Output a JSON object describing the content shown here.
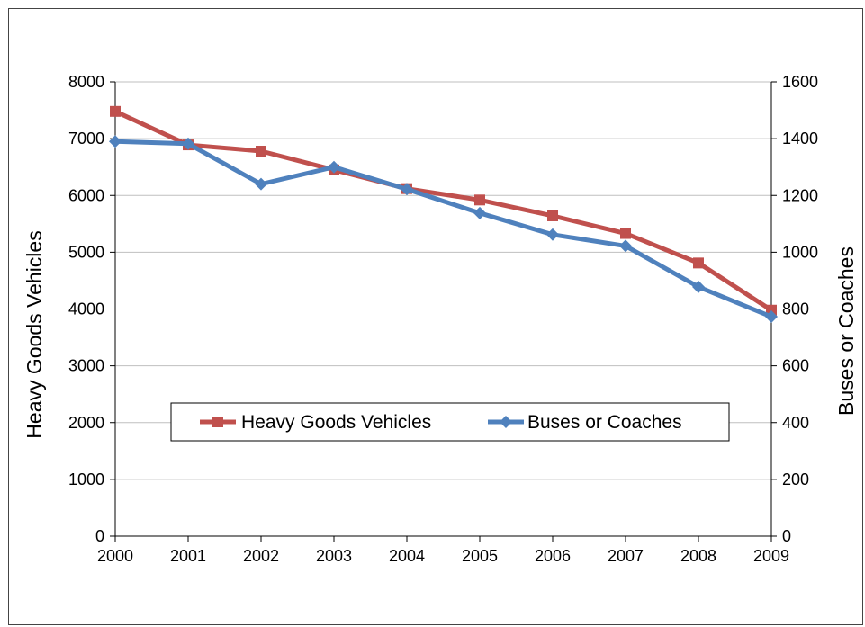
{
  "chart_data": {
    "type": "line",
    "x": [
      2000,
      2001,
      2002,
      2003,
      2004,
      2005,
      2006,
      2007,
      2008,
      2009
    ],
    "y_left": {
      "label": "Heavy Goods Vehicles",
      "ylim": [
        0,
        8000
      ],
      "ticks": [
        0,
        1000,
        2000,
        3000,
        4000,
        5000,
        6000,
        7000,
        8000
      ]
    },
    "y_right": {
      "label": "Buses or Coaches",
      "ylim": [
        0,
        1600
      ],
      "ticks": [
        0,
        200,
        400,
        600,
        800,
        1000,
        1200,
        1400,
        1600
      ]
    },
    "series": [
      {
        "name": "Heavy Goods Vehicles",
        "axis": "left",
        "color": "#c0504d",
        "marker": "square",
        "values": [
          7480,
          6890,
          6780,
          6450,
          6120,
          5920,
          5640,
          5330,
          4810,
          3980
        ]
      },
      {
        "name": "Buses or Coaches",
        "axis": "right",
        "color": "#4f81bd",
        "marker": "diamond",
        "values": [
          1390,
          1382,
          1240,
          1300,
          1222,
          1138,
          1062,
          1022,
          878,
          773
        ]
      }
    ],
    "grid": true,
    "legend_position": "lower-center"
  }
}
